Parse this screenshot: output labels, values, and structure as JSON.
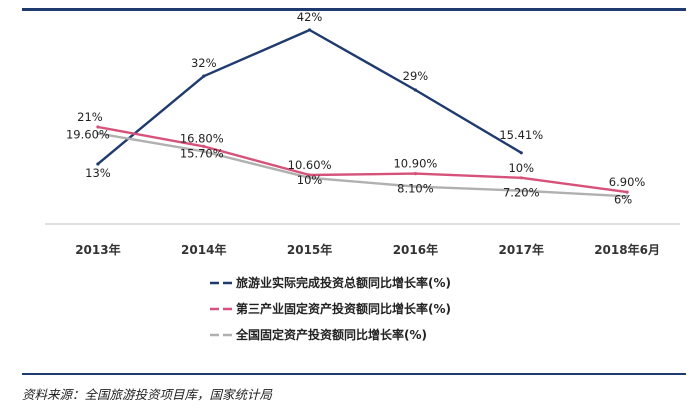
{
  "chart_data": {
    "type": "line",
    "title": "",
    "xlabel": "",
    "ylabel": "",
    "categories": [
      "2013年",
      "2014年",
      "2015年",
      "2016年",
      "2017年",
      "2018年6月"
    ],
    "ylim": [
      0,
      45
    ],
    "grid": false,
    "legend_position": "bottom",
    "series": [
      {
        "name": "旅游业实际完成投资总额同比增长率(%)",
        "color": "#1f3a6e",
        "dash": "solid",
        "values": [
          13,
          32,
          42,
          29,
          15.41,
          null
        ],
        "labels": [
          "13%",
          "32%",
          "42%",
          "29%",
          "15.41%",
          null
        ]
      },
      {
        "name": "第三产业固定资产投资额同比增长率(%)",
        "color": "#d6527a",
        "dash": "solid",
        "values": [
          21,
          16.8,
          10.6,
          10.9,
          10,
          6.9
        ],
        "labels": [
          "21%",
          "16.80%",
          "10.60%",
          "10.90%",
          "10%",
          "6.90%"
        ]
      },
      {
        "name": "全国固定资产投资额同比增长率(%)",
        "color": "#b0b0b0",
        "dash": "solid",
        "values": [
          19.6,
          15.7,
          10,
          8.1,
          7.2,
          6
        ],
        "labels": [
          "19.60%",
          "15.70%",
          "10%",
          "8.10%",
          "7.20%",
          "6%"
        ]
      }
    ]
  },
  "footer": {
    "source": "资料来源：全国旅游投资项目库，国家统计局"
  }
}
